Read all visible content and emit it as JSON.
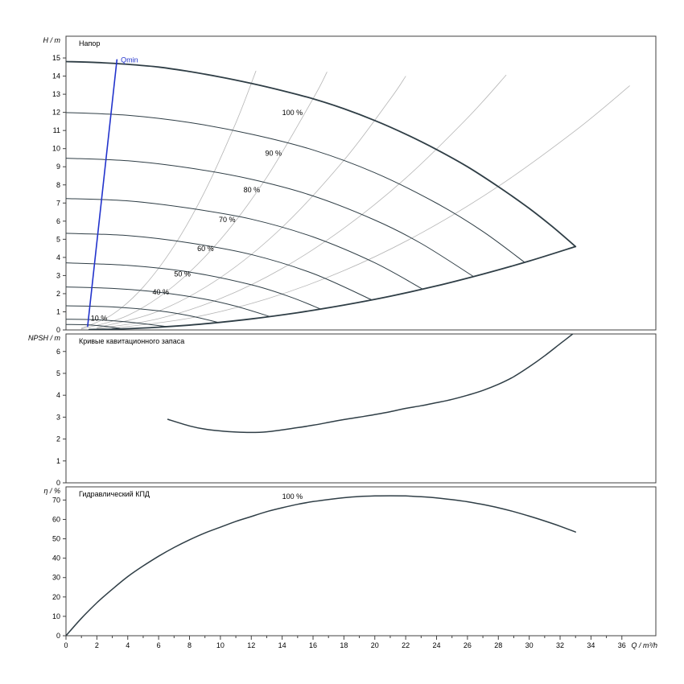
{
  "palette": {
    "curve": "#2f3e46",
    "gray": "#b5b5b5",
    "blue": "#2233cc",
    "text": "#000000",
    "border": "#404040"
  },
  "xaxis": {
    "label": "Q / m³/h",
    "major_ticks": [
      0,
      2,
      4,
      6,
      8,
      10,
      12,
      14,
      16,
      18,
      20,
      22,
      24,
      26,
      28,
      30,
      32,
      34,
      36
    ],
    "minor_ticks": [
      1,
      3,
      5,
      7,
      9,
      11,
      13,
      15,
      17,
      19,
      21,
      23,
      25,
      27,
      29,
      31,
      33,
      35
    ]
  },
  "chart_data": [
    {
      "id": "head",
      "type": "line",
      "title": "Напор",
      "ylabel": "H / m",
      "xlim": [
        0,
        38.2
      ],
      "ylim": [
        0,
        16.2
      ],
      "yticks": [
        0,
        1,
        2,
        3,
        4,
        5,
        6,
        7,
        8,
        9,
        10,
        11,
        12,
        13,
        14,
        15
      ],
      "series": [
        {
          "name": "affinity-line-1",
          "stroke": "gray",
          "width": 0.8,
          "points": [
            [
              1,
              0.09
            ],
            [
              3,
              0.85
            ],
            [
              5,
              2.36
            ],
            [
              7,
              4.63
            ],
            [
              9,
              7.65
            ],
            [
              11,
              11.42
            ],
            [
              12.3,
              14.28
            ]
          ]
        },
        {
          "name": "affinity-line-2",
          "stroke": "gray",
          "width": 0.8,
          "points": [
            [
              1,
              0.05
            ],
            [
              4,
              0.8
            ],
            [
              7,
              2.44
            ],
            [
              10,
              4.98
            ],
            [
              13,
              8.42
            ],
            [
              16,
              12.75
            ],
            [
              16.9,
              14.22
            ]
          ]
        },
        {
          "name": "affinity-line-3",
          "stroke": "gray",
          "width": 0.8,
          "points": [
            [
              2,
              0.12
            ],
            [
              6,
              1.04
            ],
            [
              10,
              2.89
            ],
            [
              14,
              5.66
            ],
            [
              18,
              9.36
            ],
            [
              21,
              12.74
            ],
            [
              22,
              13.99
            ]
          ]
        },
        {
          "name": "affinity-line-4",
          "stroke": "gray",
          "width": 0.8,
          "points": [
            [
              2,
              0.07
            ],
            [
              6,
              0.62
            ],
            [
              10,
              1.73
            ],
            [
              14,
              3.39
            ],
            [
              18,
              5.61
            ],
            [
              22,
              8.37
            ],
            [
              26,
              11.69
            ],
            [
              28.5,
              14.05
            ]
          ]
        },
        {
          "name": "affinity-line-5",
          "stroke": "gray",
          "width": 0.8,
          "points": [
            [
              3,
              0.09
            ],
            [
              8,
              0.65
            ],
            [
              13,
              1.71
            ],
            [
              18,
              3.27
            ],
            [
              23,
              5.34
            ],
            [
              28,
              7.92
            ],
            [
              33,
              11.0
            ],
            [
              36.5,
              13.46
            ]
          ]
        },
        {
          "name": "speed-curve-90",
          "stroke": "curve",
          "width": 1,
          "points": [
            [
              0,
              11.99
            ],
            [
              4,
              11.84
            ],
            [
              8,
              11.44
            ],
            [
              12,
              10.8
            ],
            [
              16,
              9.93
            ],
            [
              20,
              8.67
            ],
            [
              24,
              6.99
            ],
            [
              27,
              5.43
            ],
            [
              29.7,
              3.73
            ]
          ]
        },
        {
          "name": "speed-curve-80",
          "stroke": "curve",
          "width": 1,
          "points": [
            [
              0,
              9.47
            ],
            [
              4,
              9.33
            ],
            [
              8,
              8.93
            ],
            [
              12,
              8.31
            ],
            [
              16,
              7.39
            ],
            [
              20,
              6.06
            ],
            [
              23,
              4.77
            ],
            [
              26.4,
              2.94
            ]
          ]
        },
        {
          "name": "speed-curve-70",
          "stroke": "curve",
          "width": 1,
          "points": [
            [
              0,
              7.25
            ],
            [
              4,
              7.12
            ],
            [
              8,
              6.71
            ],
            [
              12,
              6.11
            ],
            [
              16,
              5.13
            ],
            [
              20,
              3.7
            ],
            [
              23.1,
              2.25
            ]
          ]
        },
        {
          "name": "speed-curve-60",
          "stroke": "curve",
          "width": 1,
          "points": [
            [
              0,
              5.33
            ],
            [
              4,
              5.2
            ],
            [
              8,
              4.8
            ],
            [
              12,
              4.16
            ],
            [
              16,
              3.11
            ],
            [
              19.8,
              1.66
            ]
          ]
        },
        {
          "name": "speed-curve-50",
          "stroke": "curve",
          "width": 1,
          "points": [
            [
              0,
              3.7
            ],
            [
              4,
              3.56
            ],
            [
              8,
              3.19
            ],
            [
              12,
              2.49
            ],
            [
              14.5,
              1.83
            ],
            [
              16.5,
              1.15
            ]
          ]
        },
        {
          "name": "speed-curve-40",
          "stroke": "curve",
          "width": 1,
          "points": [
            [
              0,
              2.37
            ],
            [
              3,
              2.29
            ],
            [
              6,
              2.08
            ],
            [
              9,
              1.7
            ],
            [
              11,
              1.31
            ],
            [
              13.2,
              0.74
            ]
          ]
        },
        {
          "name": "speed-curve-30",
          "stroke": "curve",
          "width": 1,
          "points": [
            [
              0,
              1.33
            ],
            [
              3,
              1.27
            ],
            [
              6,
              1.05
            ],
            [
              8,
              0.78
            ],
            [
              9.9,
              0.41
            ]
          ]
        },
        {
          "name": "speed-curve-20",
          "stroke": "curve",
          "width": 1,
          "points": [
            [
              0,
              0.59
            ],
            [
              2,
              0.56
            ],
            [
              4,
              0.44
            ],
            [
              6.6,
              0.18
            ]
          ]
        },
        {
          "name": "speed-curve-10",
          "stroke": "curve",
          "width": 1,
          "points": [
            [
              0,
              0.3
            ],
            [
              1.5,
              0.28
            ],
            [
              2.5,
              0.2
            ],
            [
              3.5,
              0.08
            ]
          ]
        },
        {
          "name": "speed-curve-100-envelope-top",
          "stroke": "curve",
          "width": 1.8,
          "points": [
            [
              0,
              14.8
            ],
            [
              2,
              14.75
            ],
            [
              4,
              14.65
            ],
            [
              6,
              14.5
            ],
            [
              8,
              14.25
            ],
            [
              10,
              13.95
            ],
            [
              12,
              13.6
            ],
            [
              14,
              13.2
            ],
            [
              16,
              12.75
            ],
            [
              18,
              12.2
            ],
            [
              20,
              11.55
            ],
            [
              22,
              10.8
            ],
            [
              24,
              9.95
            ],
            [
              26,
              9.0
            ],
            [
              28,
              7.9
            ],
            [
              30,
              6.7
            ],
            [
              31.5,
              5.7
            ],
            [
              33,
              4.6
            ]
          ]
        },
        {
          "name": "control-range-lower-limit",
          "stroke": "curve",
          "width": 1.8,
          "points": [
            [
              1.5,
              0.02
            ],
            [
              3.3,
              0.05
            ],
            [
              6,
              0.15
            ],
            [
              9,
              0.34
            ],
            [
              12,
              0.61
            ],
            [
              15,
              0.95
            ],
            [
              18,
              1.37
            ],
            [
              21,
              1.86
            ],
            [
              24,
              2.43
            ],
            [
              27,
              3.08
            ],
            [
              30,
              3.8
            ],
            [
              33,
              4.6
            ]
          ]
        },
        {
          "name": "qmin-limit-line",
          "stroke": "blue",
          "width": 1.6,
          "points": [
            [
              1.4,
              0.2
            ],
            [
              3.3,
              14.9
            ]
          ]
        }
      ],
      "labels": [
        {
          "text": "Qmin",
          "x": 3.55,
          "y": 14.75,
          "color": "blue"
        },
        {
          "text": "100 %",
          "x": 14.0,
          "y": 11.85
        },
        {
          "text": "90 %",
          "x": 12.9,
          "y": 9.6
        },
        {
          "text": "80 %",
          "x": 11.5,
          "y": 7.6
        },
        {
          "text": "70 %",
          "x": 9.9,
          "y": 5.95
        },
        {
          "text": "60 %",
          "x": 8.5,
          "y": 4.35
        },
        {
          "text": "50 %",
          "x": 7.0,
          "y": 2.95
        },
        {
          "text": "40 %",
          "x": 5.6,
          "y": 1.95
        },
        {
          "text": "10 %",
          "x": 1.6,
          "y": 0.5
        }
      ]
    },
    {
      "id": "npsh",
      "type": "line",
      "title": "Кривые кавитационного запаса",
      "ylabel": "NPSH / m",
      "xlim": [
        0,
        38.2
      ],
      "ylim": [
        0,
        6.8
      ],
      "yticks": [
        0,
        1,
        2,
        3,
        4,
        5,
        6
      ],
      "series": [
        {
          "name": "npsh-curve",
          "stroke": "curve",
          "width": 1.5,
          "points": [
            [
              6.6,
              2.9
            ],
            [
              8,
              2.6
            ],
            [
              9,
              2.45
            ],
            [
              10,
              2.37
            ],
            [
              11,
              2.32
            ],
            [
              12,
              2.3
            ],
            [
              13,
              2.33
            ],
            [
              14,
              2.42
            ],
            [
              15,
              2.52
            ],
            [
              16,
              2.63
            ],
            [
              17,
              2.76
            ],
            [
              18,
              2.89
            ],
            [
              19,
              3.0
            ],
            [
              20,
              3.12
            ],
            [
              21,
              3.25
            ],
            [
              22,
              3.4
            ],
            [
              23,
              3.52
            ],
            [
              24,
              3.66
            ],
            [
              25,
              3.81
            ],
            [
              26,
              4.0
            ],
            [
              27,
              4.22
            ],
            [
              28,
              4.5
            ],
            [
              29,
              4.85
            ],
            [
              30,
              5.3
            ],
            [
              31,
              5.8
            ],
            [
              32,
              6.35
            ],
            [
              33,
              6.9
            ]
          ]
        }
      ],
      "labels": []
    },
    {
      "id": "eff",
      "type": "line",
      "title": "Гидравлический КПД",
      "ylabel": "η / %",
      "xlim": [
        0,
        38.2
      ],
      "ylim": [
        0,
        76.8
      ],
      "yticks": [
        0,
        10,
        20,
        30,
        40,
        50,
        60,
        70
      ],
      "series": [
        {
          "name": "efficiency-curve",
          "stroke": "curve",
          "width": 1.5,
          "points": [
            [
              0,
              0
            ],
            [
              1,
              9
            ],
            [
              2,
              17
            ],
            [
              3,
              24
            ],
            [
              4,
              30.5
            ],
            [
              5,
              36
            ],
            [
              6,
              41
            ],
            [
              7,
              45.5
            ],
            [
              8,
              49.5
            ],
            [
              9,
              53
            ],
            [
              10,
              56
            ],
            [
              11,
              59
            ],
            [
              12,
              61.5
            ],
            [
              13,
              64
            ],
            [
              14,
              66
            ],
            [
              15,
              67.8
            ],
            [
              16,
              69.2
            ],
            [
              17,
              70.3
            ],
            [
              18,
              71.2
            ],
            [
              19,
              71.8
            ],
            [
              20,
              72.1
            ],
            [
              21,
              72.2
            ],
            [
              22,
              72.1
            ],
            [
              23,
              71.7
            ],
            [
              24,
              71.1
            ],
            [
              25,
              70.2
            ],
            [
              26,
              69.1
            ],
            [
              27,
              67.7
            ],
            [
              28,
              66
            ],
            [
              29,
              64
            ],
            [
              30,
              61.7
            ],
            [
              31,
              59.2
            ],
            [
              32,
              56.5
            ],
            [
              33,
              53.5
            ]
          ]
        }
      ],
      "labels": [
        {
          "text": "100 %",
          "x": 14.0,
          "y": 70.5
        }
      ]
    }
  ]
}
